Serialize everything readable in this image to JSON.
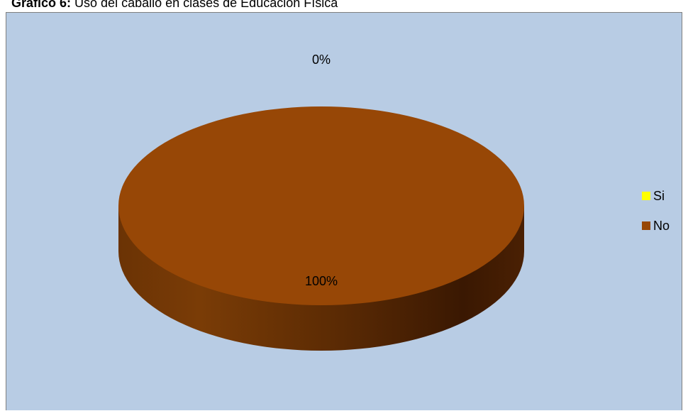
{
  "caption": {
    "label": "Gráfico 6:",
    "text": " Uso del caballo en clases de Educación Física"
  },
  "colors": {
    "background": "#b8cce4",
    "si": "#ffff00",
    "no_top": "#974706",
    "no_side_dark": "#3d1902",
    "no_side_mid": "#6b3305"
  },
  "chart_data": {
    "type": "pie",
    "style": "3d",
    "categories": [
      "Si",
      "No"
    ],
    "values": [
      0,
      100
    ],
    "data_labels": [
      "0%",
      "100%"
    ],
    "legend": {
      "position": "right",
      "entries": [
        "Si",
        "No"
      ]
    }
  }
}
